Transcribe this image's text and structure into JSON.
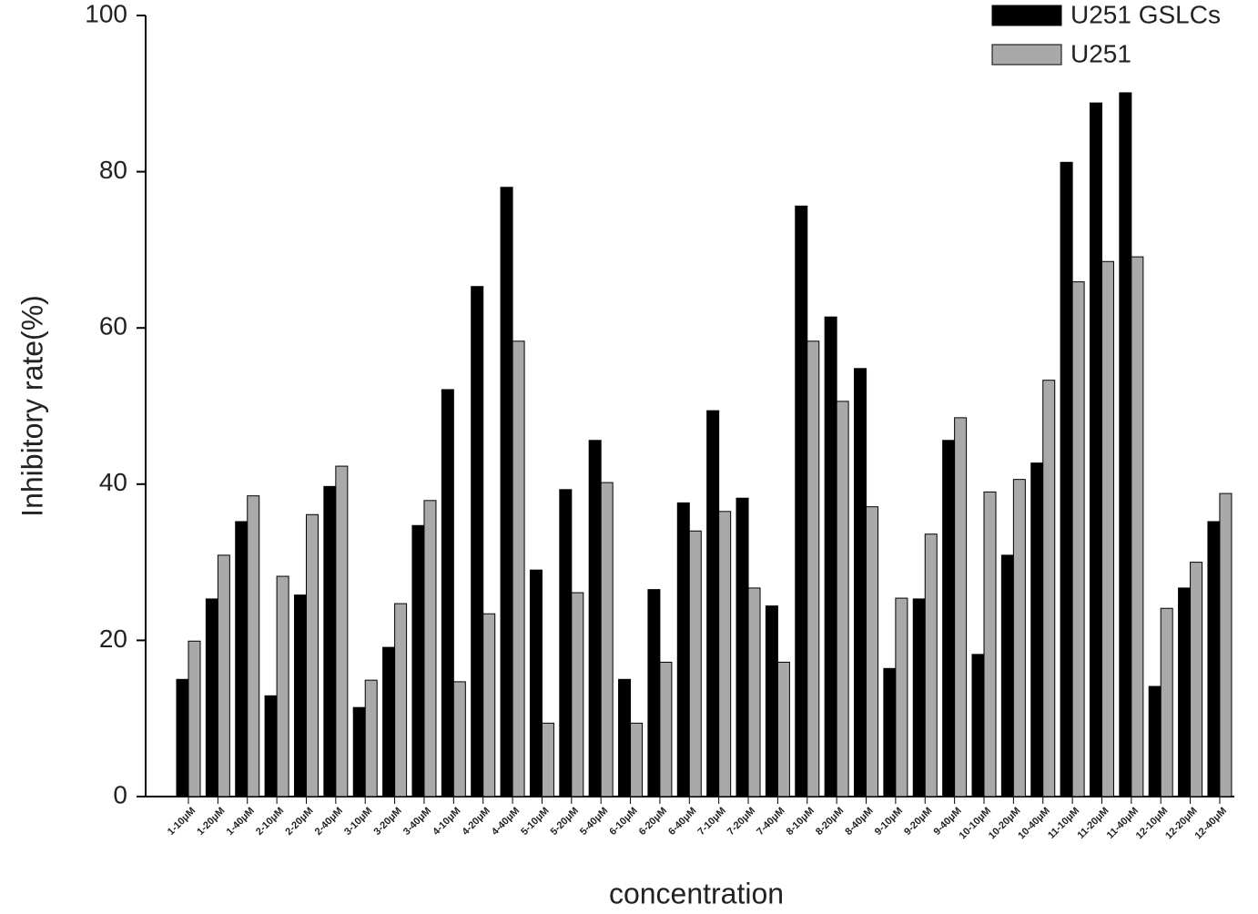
{
  "chart_data": {
    "type": "bar",
    "y_label": "Inhibitory rate(%)",
    "x_label": "concentration",
    "categories": [
      "1-10μM",
      "1-20μM",
      "1-40μM",
      "2-10μM",
      "2-20μM",
      "2-40μM",
      "3-10μM",
      "3-20μM",
      "3-40μM",
      "4-10μM",
      "4-20μM",
      "4-40μM",
      "5-10μM",
      "5-20μM",
      "5-40μM",
      "6-10μM",
      "6-20μM",
      "6-40μM",
      "7-10μM",
      "7-20μM",
      "7-40μM",
      "8-10μM",
      "8-20μM",
      "8-40μM",
      "9-10μM",
      "9-20μM",
      "9-40μM",
      "10-10μM",
      "10-20μM",
      "10-40μM",
      "11-10μM",
      "11-20μM",
      "11-40μM",
      "12-10μM",
      "12-20μM",
      "12-40μM"
    ],
    "series": [
      {
        "name": "U251 GSLCs",
        "color": "#000000",
        "values": [
          15.0,
          25.3,
          35.2,
          12.9,
          25.8,
          39.7,
          11.4,
          19.1,
          34.7,
          52.1,
          65.3,
          78.0,
          29.0,
          39.3,
          45.6,
          15.0,
          26.5,
          37.6,
          49.4,
          38.2,
          24.4,
          75.6,
          61.4,
          54.8,
          16.4,
          25.3,
          45.6,
          18.2,
          30.9,
          42.7,
          81.2,
          88.8,
          90.1,
          14.1,
          26.7,
          35.2
        ]
      },
      {
        "name": "U251",
        "color": "#a9a9a9",
        "values": [
          19.9,
          30.9,
          38.5,
          28.2,
          36.1,
          42.3,
          14.9,
          24.7,
          37.9,
          14.7,
          23.4,
          58.3,
          9.4,
          26.1,
          40.2,
          9.4,
          17.2,
          34.0,
          36.5,
          26.7,
          17.2,
          58.3,
          50.6,
          37.1,
          25.4,
          33.6,
          48.5,
          39.0,
          40.6,
          53.3,
          65.9,
          68.5,
          69.1,
          24.1,
          30.0,
          38.8
        ]
      }
    ],
    "ylim": [
      0,
      100
    ],
    "yticks": [
      0,
      20,
      40,
      60,
      80,
      100
    ],
    "legend": "top-right"
  }
}
